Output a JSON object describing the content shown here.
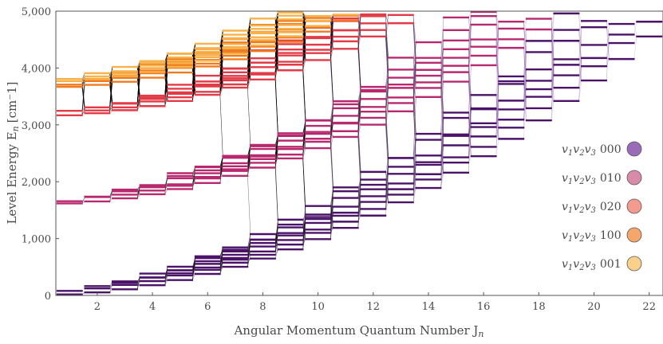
{
  "chart_data": {
    "type": "energy-level-diagram",
    "title": "",
    "xlabel": "Angular Momentum Quantum Number J",
    "xlabel_subscript": "n",
    "ylabel": "Level Energy E",
    "ylabel_subscript": "n",
    "ylabel_unit": "[cm⁻1]",
    "xlim": [
      0.5,
      22.5
    ],
    "ylim": [
      0,
      5000
    ],
    "x_ticks": [
      2,
      4,
      6,
      8,
      10,
      12,
      14,
      16,
      18,
      20,
      22
    ],
    "y_ticks": [
      0,
      1000,
      2000,
      3000,
      4000,
      5000
    ],
    "y_tick_labels": [
      "0",
      "1,000",
      "2,000",
      "3,000",
      "4,000",
      "5,000"
    ],
    "legend_position": "right",
    "series": [
      {
        "name": "v1v2v3 000",
        "label_prefix": "v",
        "label_suffix": "000",
        "color": "#4a1268",
        "legend_color": "#9a6bb8",
        "base_energy": 0,
        "rotational_constant": 10,
        "levels_max": 5000
      },
      {
        "name": "v1v2v3 010",
        "label_prefix": "v",
        "label_suffix": "010",
        "color": "#b8286e",
        "legend_color": "#d98aa8",
        "base_energy": 1600,
        "rotational_constant": 10,
        "levels_max": 5000
      },
      {
        "name": "v1v2v3 020",
        "label_prefix": "v",
        "label_suffix": "020",
        "color": "#e23a46",
        "legend_color": "#f49a8f",
        "base_energy": 3150,
        "rotational_constant": 10,
        "levels_max": 5000
      },
      {
        "name": "v1v2v3 100",
        "label_prefix": "v",
        "label_suffix": "100",
        "color": "#f07a1e",
        "legend_color": "#f5a66b",
        "base_energy": 3650,
        "rotational_constant": 10,
        "levels_max": 5000
      },
      {
        "name": "v1v2v3 001",
        "label_prefix": "v",
        "label_suffix": "001",
        "color": "#f8b24a",
        "legend_color": "#fbd08a",
        "base_energy": 3750,
        "rotational_constant": 10,
        "levels_max": 5000
      }
    ],
    "transitions": "lines connecting levels of adjacent J (ΔJ = ±1), drawn in black for low J and fading to purple for high J"
  }
}
